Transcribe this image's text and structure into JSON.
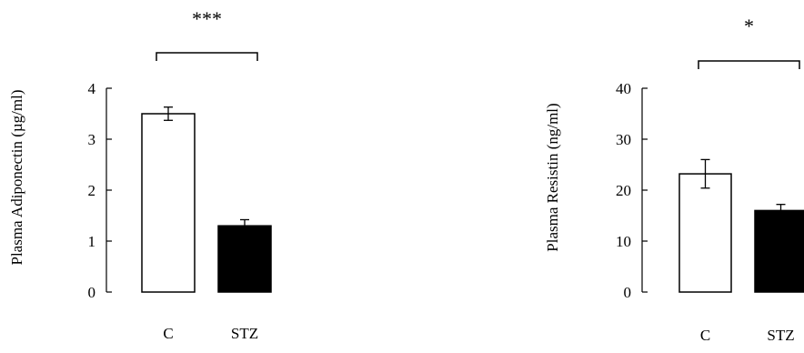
{
  "chart_data": [
    {
      "type": "bar",
      "categories": [
        "C",
        "STZ"
      ],
      "values": [
        3.5,
        1.3
      ],
      "errors": [
        0.13,
        0.12
      ],
      "bar_fill": [
        "#ffffff",
        "#000000"
      ],
      "yticks": [
        "0",
        "1",
        "2",
        "3",
        "4"
      ],
      "ylim": [
        0,
        4
      ],
      "ylabel": "Plasma Adiponectin (µg/ml)",
      "significance": "***"
    },
    {
      "type": "bar",
      "categories": [
        "C",
        "STZ"
      ],
      "values": [
        23.2,
        16.0
      ],
      "errors": [
        2.8,
        1.2
      ],
      "bar_fill": [
        "#ffffff",
        "#000000"
      ],
      "yticks": [
        "0",
        "10",
        "20",
        "30",
        "40"
      ],
      "ylim": [
        0,
        40
      ],
      "ylabel": "Plasma Resistin (ng/ml)",
      "significance": "*"
    }
  ]
}
